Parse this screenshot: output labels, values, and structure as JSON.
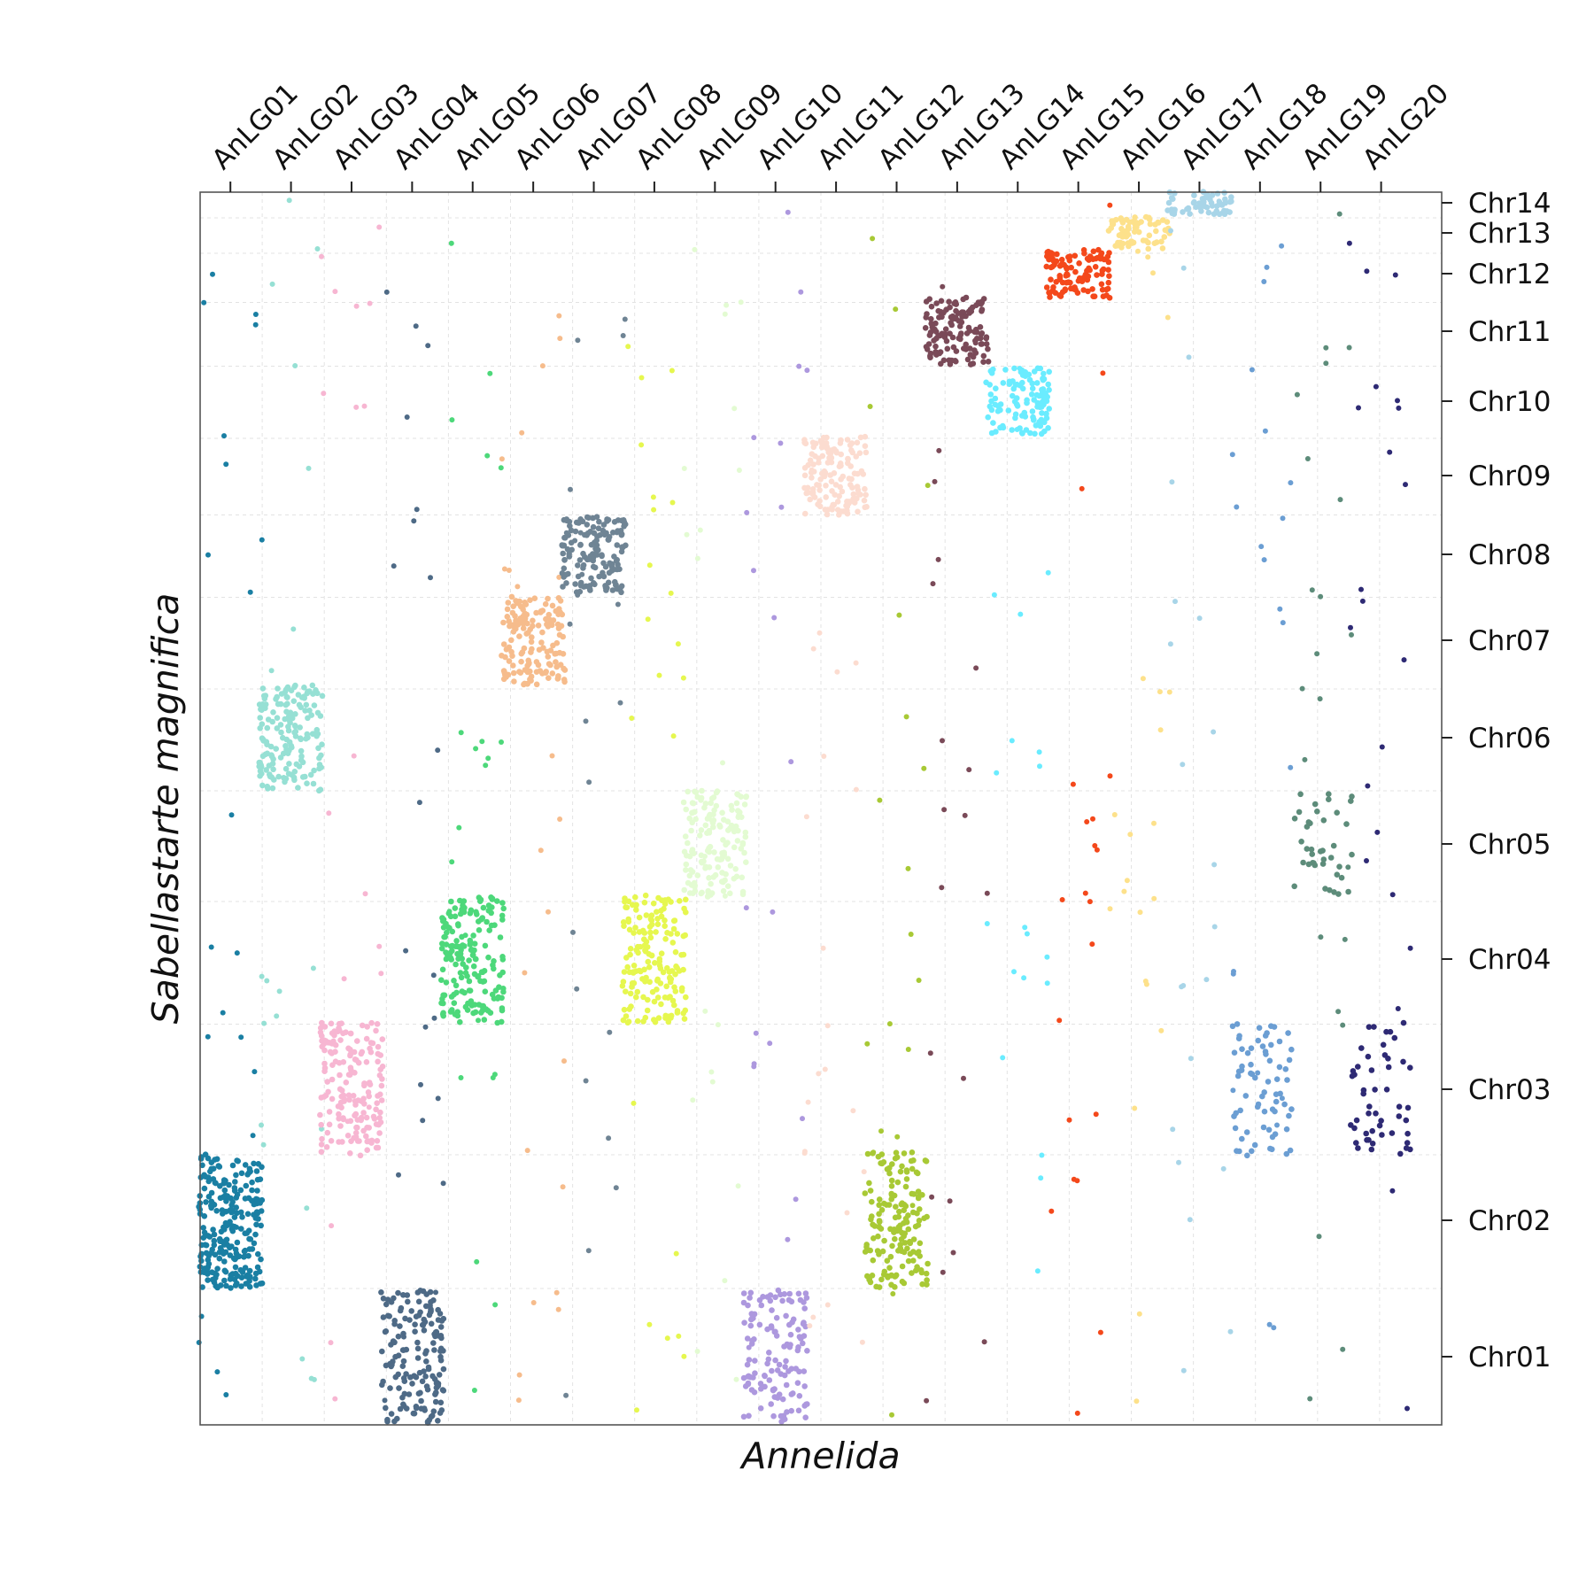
{
  "chart_data": {
    "type": "scatter",
    "title": "",
    "xlabel": "Annelida",
    "ylabel": "Sabellastarte magnifica",
    "x_axis_position": "top",
    "y_axis_position": "right",
    "x_categories": [
      "AnLG01",
      "AnLG02",
      "AnLG03",
      "AnLG04",
      "AnLG05",
      "AnLG06",
      "AnLG07",
      "AnLG08",
      "AnLG09",
      "AnLG10",
      "AnLG11",
      "AnLG12",
      "AnLG13",
      "AnLG14",
      "AnLG15",
      "AnLG16",
      "AnLG17",
      "AnLG18",
      "AnLG19",
      "AnLG20"
    ],
    "y_categories": [
      "Chr01",
      "Chr02",
      "Chr03",
      "Chr04",
      "Chr05",
      "Chr06",
      "Chr07",
      "Chr08",
      "Chr09",
      "Chr10",
      "Chr11",
      "Chr12",
      "Chr13",
      "Chr14"
    ],
    "grid": true,
    "grid_style": "dashed light gray",
    "legend": "none",
    "clusters": [
      {
        "name": "AnLG01",
        "x": 1,
        "y": 2,
        "color": "#1a7fa3",
        "n": 240
      },
      {
        "name": "AnLG02",
        "x": 2,
        "y": 6,
        "color": "#96e0d4",
        "n": 170
      },
      {
        "name": "AnLG03",
        "x": 3,
        "y": 3,
        "color": "#f7b6d2",
        "n": 170
      },
      {
        "name": "AnLG04",
        "x": 4,
        "y": 1,
        "color": "#4e6a86",
        "n": 160
      },
      {
        "name": "AnLG05",
        "x": 5,
        "y": 4,
        "color": "#4dd87a",
        "n": 180
      },
      {
        "name": "AnLG06",
        "x": 6,
        "y": 7,
        "color": "#f6bc8c",
        "n": 150
      },
      {
        "name": "AnLG07",
        "x": 7,
        "y": 8,
        "color": "#6f8494",
        "n": 150
      },
      {
        "name": "AnLG08",
        "x": 8,
        "y": 4,
        "color": "#e6f74f",
        "n": 170
      },
      {
        "name": "AnLG09",
        "x": 9,
        "y": 5,
        "color": "#e3fbd2",
        "n": 150
      },
      {
        "name": "AnLG10",
        "x": 10,
        "y": 1,
        "color": "#ad98de",
        "n": 130
      },
      {
        "name": "AnLG11",
        "x": 11,
        "y": 9,
        "color": "#fcdcd0",
        "n": 140
      },
      {
        "name": "AnLG12",
        "x": 12,
        "y": 2,
        "color": "#a8c935",
        "n": 160
      },
      {
        "name": "AnLG13",
        "x": 13,
        "y": 11,
        "color": "#7a4a58",
        "n": 130
      },
      {
        "name": "AnLG14",
        "x": 14,
        "y": 10,
        "color": "#6aecff",
        "n": 110
      },
      {
        "name": "AnLG15",
        "x": 15,
        "y": 12,
        "color": "#f4481b",
        "n": 110
      },
      {
        "name": "AnLG16",
        "x": 16,
        "y": 13,
        "color": "#fde18b",
        "n": 70
      },
      {
        "name": "AnLG17",
        "x": 17,
        "y": 14,
        "color": "#a8d5e8",
        "n": 60
      },
      {
        "name": "AnLG18",
        "x": 18,
        "y": 3,
        "color": "#6b9ed3",
        "n": 70
      },
      {
        "name": "AnLG19",
        "x": 19,
        "y": 5,
        "color": "#5d8c7a",
        "n": 40
      },
      {
        "name": "AnLG20",
        "x": 20,
        "y": 3,
        "color": "#2e2a74",
        "n": 50
      }
    ],
    "background_scatter": "sparse off-cluster points in each group's color"
  }
}
